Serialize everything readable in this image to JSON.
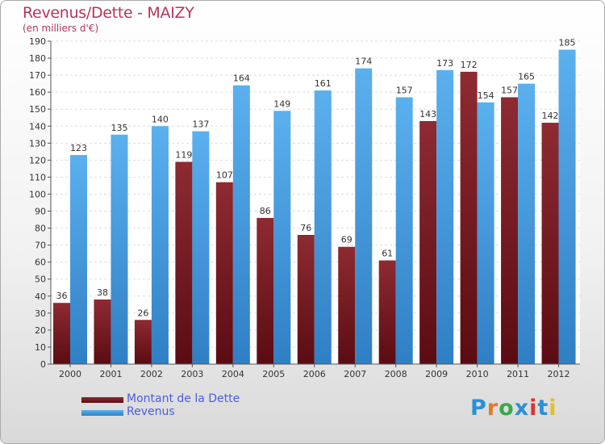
{
  "header": {
    "title": "Revenus/Dette - MAIZY",
    "subtitle": "(en milliers d'€)"
  },
  "legend": {
    "debt_label": "Montant de la Dette",
    "revenue_label": "Revenus"
  },
  "logo": {
    "text": "Proxiti",
    "colors": [
      "#2a8fd6",
      "#e07b2a",
      "#3aa84a",
      "#2a8fd6",
      "#d8342a",
      "#2a8fd6",
      "#e0c02a"
    ]
  },
  "colors": {
    "debt": "#7a1e26",
    "revenue": "#4da3e3",
    "title": "#b5365a",
    "legend_text": "#4a5ee0"
  },
  "chart_data": {
    "type": "bar",
    "categories": [
      "2000",
      "2001",
      "2002",
      "2003",
      "2004",
      "2005",
      "2006",
      "2007",
      "2008",
      "2009",
      "2010",
      "2011",
      "2012"
    ],
    "series": [
      {
        "name": "Montant de la Dette",
        "values": [
          36,
          38,
          26,
          119,
          107,
          86,
          76,
          69,
          61,
          143,
          172,
          157,
          142
        ]
      },
      {
        "name": "Revenus",
        "values": [
          123,
          135,
          140,
          137,
          164,
          149,
          161,
          174,
          157,
          173,
          154,
          165,
          185
        ]
      }
    ],
    "ylim": [
      0,
      190
    ],
    "yticks": [
      0,
      10,
      20,
      30,
      40,
      50,
      60,
      70,
      80,
      90,
      100,
      110,
      120,
      130,
      140,
      150,
      160,
      170,
      180,
      190
    ],
    "grid": true,
    "legend_position": "bottom-left"
  }
}
